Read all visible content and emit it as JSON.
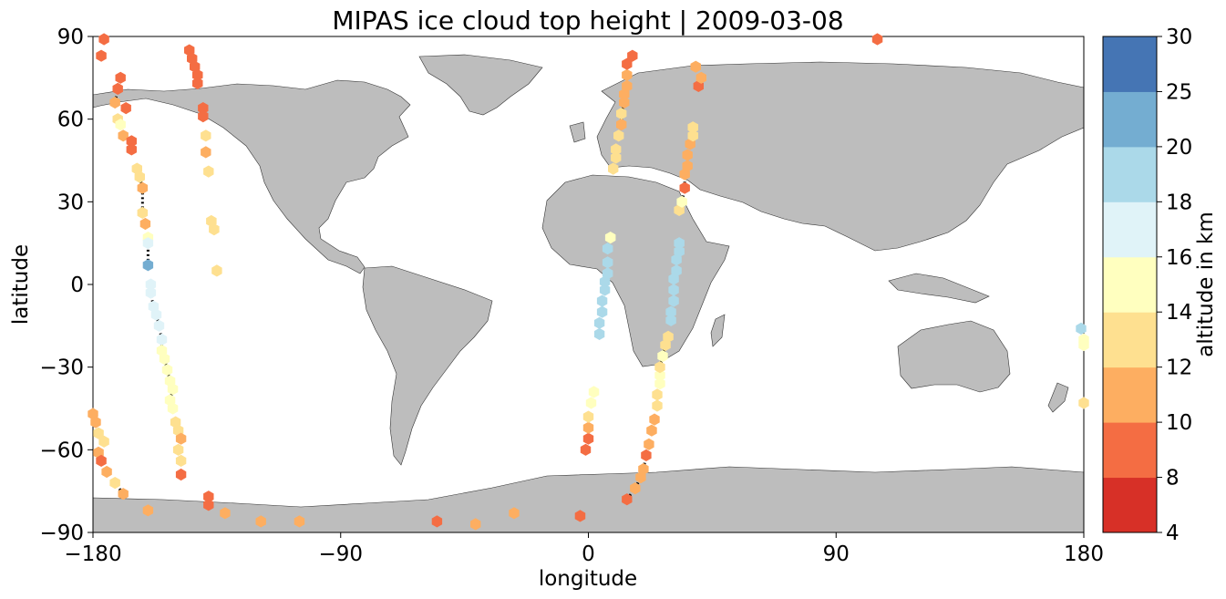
{
  "title": "MIPAS ice cloud top height | 2009-03-08",
  "xlabel": "longitude",
  "ylabel": "latitude",
  "x_ticks": [
    "−180",
    "−90",
    "0",
    "90",
    "180"
  ],
  "y_ticks": [
    "90",
    "60",
    "30",
    "0",
    "−30",
    "−60",
    "−90"
  ],
  "colorbar": {
    "label": "altitude in km",
    "ticks": [
      "4",
      "8",
      "10",
      "12",
      "14",
      "16",
      "18",
      "20",
      "25",
      "30"
    ],
    "boundaries": [
      4,
      8,
      10,
      12,
      14,
      16,
      18,
      20,
      25,
      30
    ],
    "colors": [
      "#a50026",
      "#d73027",
      "#f46d43",
      "#fdae61",
      "#fee090",
      "#ffffbf",
      "#e0f3f8",
      "#abd9e9",
      "#74add1",
      "#4575b4",
      "#313695"
    ]
  },
  "chart_data": {
    "type": "scatter",
    "title": "MIPAS ice cloud top height | 2009-03-08",
    "xlabel": "longitude",
    "ylabel": "latitude",
    "xlim": [
      -180,
      180
    ],
    "ylim": [
      -90,
      90
    ],
    "land_color": "#bdbdbd",
    "orbit_track_color": "#000000",
    "series": [
      {
        "points": [
          [
            -176,
            89,
            8
          ],
          [
            -177,
            83,
            8
          ],
          [
            -168,
            64,
            8
          ],
          [
            -170,
            75,
            8
          ],
          [
            -171,
            71,
            8
          ],
          [
            -172,
            66,
            10
          ],
          [
            -171,
            60,
            12
          ],
          [
            -170,
            58,
            14
          ],
          [
            -169,
            54,
            10
          ],
          [
            -166,
            52,
            8
          ],
          [
            -166,
            49,
            8
          ],
          [
            -164,
            42,
            12
          ],
          [
            -163,
            39,
            12
          ],
          [
            -162,
            35,
            10
          ],
          [
            -162,
            26,
            12
          ],
          [
            -161,
            22,
            10
          ],
          [
            -160,
            17,
            14
          ],
          [
            -160,
            15,
            16
          ],
          [
            -160,
            7,
            20
          ],
          [
            -159,
            0,
            16
          ],
          [
            -159,
            -3,
            16
          ],
          [
            -158,
            -8,
            16
          ],
          [
            -157,
            -11,
            16
          ],
          [
            -156,
            -15,
            16
          ],
          [
            -155,
            -20,
            16
          ],
          [
            -155,
            -24,
            14
          ],
          [
            -154,
            -27,
            14
          ],
          [
            -153,
            -31,
            14
          ],
          [
            -152,
            -35,
            14
          ],
          [
            -151,
            -38,
            14
          ],
          [
            -152,
            -42,
            14
          ],
          [
            -151,
            -45,
            14
          ],
          [
            -150,
            -50,
            12
          ],
          [
            -149,
            -53,
            12
          ],
          [
            -148,
            -56,
            10
          ],
          [
            -149,
            -60,
            12
          ],
          [
            -148,
            -64,
            12
          ],
          [
            -180,
            -47,
            10
          ],
          [
            -179,
            -50,
            10
          ],
          [
            -178,
            -54,
            12
          ],
          [
            -176,
            -57,
            12
          ],
          [
            -178,
            -61,
            10
          ],
          [
            -177,
            -64,
            8
          ],
          [
            -175,
            -68,
            10
          ],
          [
            -172,
            -72,
            12
          ],
          [
            -169,
            -76,
            10
          ],
          [
            -160,
            -82,
            10
          ],
          [
            -148,
            -69,
            8
          ],
          [
            -138,
            -77,
            8
          ],
          [
            -138,
            -80,
            8
          ],
          [
            -132,
            -83,
            10
          ],
          [
            -119,
            -86,
            10
          ],
          [
            -105,
            -86,
            10
          ],
          [
            -145,
            85,
            8
          ],
          [
            -144,
            82,
            8
          ],
          [
            -143,
            79,
            8
          ],
          [
            -142,
            76,
            8
          ],
          [
            -142,
            73,
            8
          ],
          [
            -140,
            64,
            8
          ],
          [
            -140,
            61,
            8
          ],
          [
            -139,
            54,
            12
          ],
          [
            -139,
            48,
            10
          ],
          [
            -138,
            41,
            12
          ],
          [
            -137,
            23,
            12
          ],
          [
            -136,
            20,
            12
          ],
          [
            -135,
            5,
            12
          ]
        ]
      },
      {
        "points": [
          [
            -55,
            -86,
            8
          ],
          [
            -41,
            -87,
            10
          ],
          [
            -27,
            -83,
            10
          ],
          [
            -3,
            -84,
            8
          ],
          [
            -1,
            -60,
            8
          ],
          [
            0,
            -56,
            8
          ],
          [
            0,
            -52,
            10
          ],
          [
            0,
            -48,
            12
          ],
          [
            1,
            -43,
            14
          ],
          [
            2,
            -39,
            14
          ],
          [
            4,
            -18,
            18
          ],
          [
            4,
            -14,
            18
          ],
          [
            5,
            -10,
            18
          ],
          [
            5,
            -6,
            18
          ],
          [
            6,
            -2,
            18
          ],
          [
            6,
            1,
            18
          ],
          [
            7,
            4,
            18
          ],
          [
            7,
            8,
            18
          ],
          [
            7,
            13,
            18
          ],
          [
            8,
            17,
            14
          ],
          [
            9,
            42,
            12
          ],
          [
            10,
            46,
            12
          ],
          [
            10,
            49,
            12
          ],
          [
            11,
            54,
            12
          ],
          [
            12,
            58,
            10
          ],
          [
            12,
            62,
            12
          ],
          [
            13,
            66,
            10
          ],
          [
            13,
            69,
            10
          ],
          [
            14,
            72,
            10
          ],
          [
            14,
            76,
            10
          ],
          [
            14,
            80,
            8
          ],
          [
            16,
            83,
            8
          ],
          [
            14,
            -78,
            8
          ],
          [
            17,
            -74,
            10
          ],
          [
            19,
            -70,
            10
          ],
          [
            20,
            -67,
            10
          ],
          [
            21,
            -62,
            8
          ],
          [
            22,
            -58,
            10
          ],
          [
            23,
            -53,
            10
          ],
          [
            24,
            -49,
            10
          ],
          [
            25,
            -44,
            12
          ],
          [
            25,
            -40,
            12
          ],
          [
            26,
            -36,
            14
          ],
          [
            26,
            -33,
            14
          ],
          [
            26,
            -30,
            12
          ],
          [
            27,
            -26,
            14
          ],
          [
            28,
            -22,
            12
          ],
          [
            29,
            -19,
            12
          ],
          [
            30,
            -13,
            18
          ],
          [
            30,
            -10,
            18
          ],
          [
            31,
            -6,
            18
          ],
          [
            31,
            -2,
            18
          ],
          [
            31,
            2,
            18
          ],
          [
            32,
            5,
            18
          ],
          [
            32,
            9,
            18
          ],
          [
            33,
            12,
            18
          ],
          [
            33,
            15,
            18
          ],
          [
            33,
            27,
            12
          ],
          [
            34,
            30,
            14
          ],
          [
            35,
            35,
            8
          ],
          [
            35,
            40,
            10
          ],
          [
            36,
            43,
            10
          ],
          [
            36,
            47,
            10
          ],
          [
            37,
            51,
            10
          ],
          [
            38,
            54,
            12
          ],
          [
            38,
            57,
            12
          ],
          [
            40,
            72,
            8
          ],
          [
            41,
            75,
            10
          ],
          [
            39,
            79,
            10
          ],
          [
            105,
            89,
            8
          ],
          [
            179,
            -16,
            18
          ],
          [
            180,
            -20,
            14
          ],
          [
            180,
            -22,
            14
          ],
          [
            180,
            -43,
            12
          ]
        ]
      }
    ]
  }
}
